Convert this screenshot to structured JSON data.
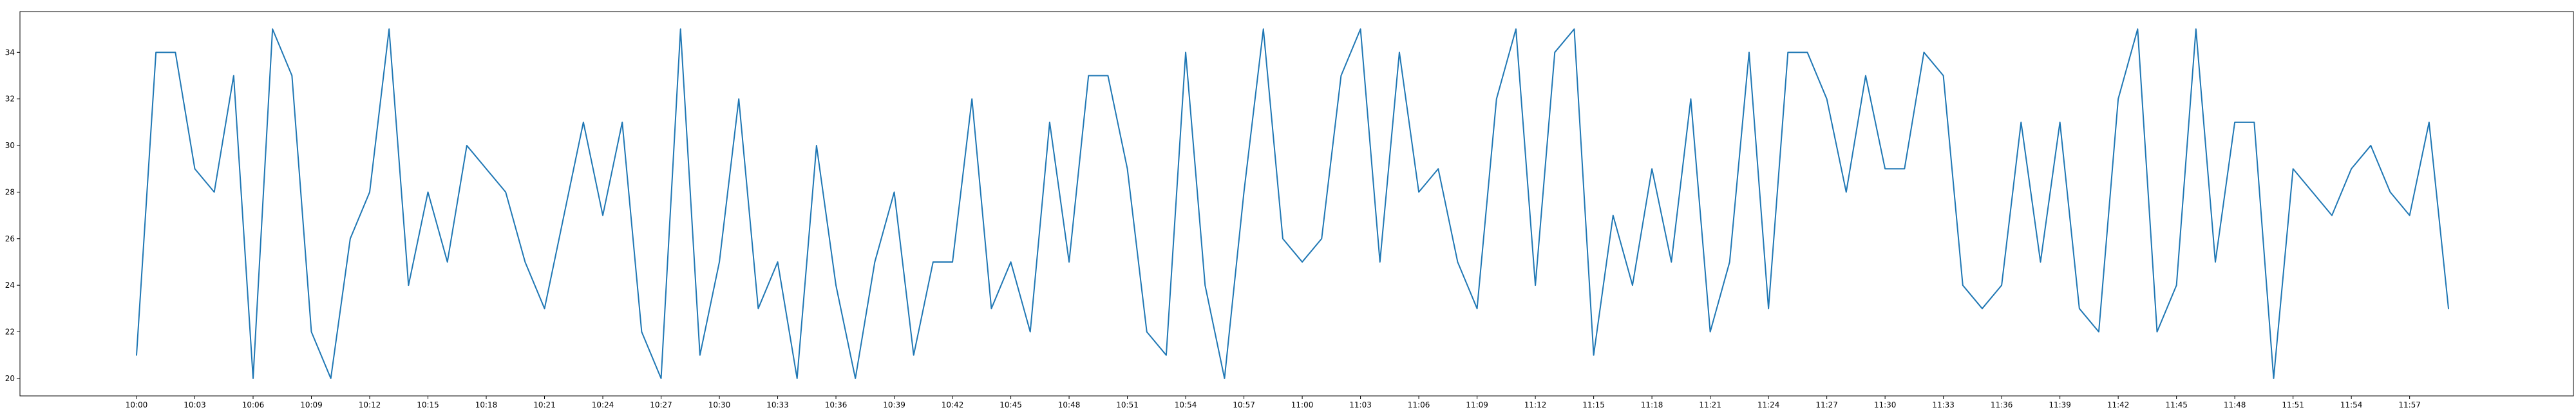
{
  "chart_data": {
    "type": "line",
    "title": "",
    "xlabel": "",
    "ylabel": "",
    "x": [
      "10:00",
      "10:01",
      "10:02",
      "10:03",
      "10:04",
      "10:05",
      "10:06",
      "10:07",
      "10:08",
      "10:09",
      "10:10",
      "10:11",
      "10:12",
      "10:13",
      "10:14",
      "10:15",
      "10:16",
      "10:17",
      "10:18",
      "10:19",
      "10:20",
      "10:21",
      "10:22",
      "10:23",
      "10:24",
      "10:25",
      "10:26",
      "10:27",
      "10:28",
      "10:29",
      "10:30",
      "10:31",
      "10:32",
      "10:33",
      "10:34",
      "10:35",
      "10:36",
      "10:37",
      "10:38",
      "10:39",
      "10:40",
      "10:41",
      "10:42",
      "10:43",
      "10:44",
      "10:45",
      "10:46",
      "10:47",
      "10:48",
      "10:49",
      "10:50",
      "10:51",
      "10:52",
      "10:53",
      "10:54",
      "10:55",
      "10:56",
      "10:57",
      "10:58",
      "10:59",
      "11:00",
      "11:01",
      "11:02",
      "11:03",
      "11:04",
      "11:05",
      "11:06",
      "11:07",
      "11:08",
      "11:09",
      "11:10",
      "11:11",
      "11:12",
      "11:13",
      "11:14",
      "11:15",
      "11:16",
      "11:17",
      "11:18",
      "11:19",
      "11:20",
      "11:21",
      "11:22",
      "11:23",
      "11:24",
      "11:25",
      "11:26",
      "11:27",
      "11:28",
      "11:29",
      "11:30",
      "11:31",
      "11:32",
      "11:33",
      "11:34",
      "11:35",
      "11:36",
      "11:37",
      "11:38",
      "11:39",
      "11:40",
      "11:41",
      "11:42",
      "11:43",
      "11:44",
      "11:45",
      "11:46",
      "11:47",
      "11:48",
      "11:49",
      "11:50",
      "11:51",
      "11:52",
      "11:53",
      "11:54",
      "11:55",
      "11:56",
      "11:57",
      "11:58",
      "11:59"
    ],
    "series": [
      {
        "values": [
          21,
          34,
          34,
          29,
          28,
          33,
          20,
          35,
          33,
          22,
          20,
          26,
          28,
          35,
          24,
          28,
          25,
          30,
          29,
          28,
          25,
          23,
          27,
          31,
          27,
          31,
          22,
          20,
          35,
          21,
          25,
          32,
          23,
          25,
          20,
          30,
          24,
          20,
          25,
          28,
          21,
          25,
          25,
          32,
          23,
          25,
          22,
          31,
          25,
          33,
          33,
          29,
          22,
          21,
          34,
          24,
          20,
          28,
          35,
          26,
          25,
          26,
          33,
          35,
          25,
          34,
          28,
          29,
          25,
          23,
          32,
          35,
          24,
          34,
          35,
          21,
          27,
          24,
          29,
          25,
          32,
          22,
          25,
          34,
          23,
          34,
          34,
          32,
          28,
          33,
          29,
          29,
          34,
          33,
          24,
          23,
          24,
          31,
          25,
          31,
          23,
          22,
          32,
          35,
          22,
          24,
          35,
          25,
          31,
          31,
          20,
          29,
          28,
          27,
          29,
          30,
          28,
          27,
          31,
          23
        ],
        "color": "#1f77b4"
      }
    ],
    "x_ticks": [
      "10:00",
      "10:03",
      "10:06",
      "10:09",
      "10:12",
      "10:15",
      "10:18",
      "10:21",
      "10:24",
      "10:27",
      "10:30",
      "10:33",
      "10:36",
      "10:39",
      "10:42",
      "10:45",
      "10:48",
      "10:51",
      "10:54",
      "10:57",
      "11:00",
      "11:03",
      "11:06",
      "11:09",
      "11:12",
      "11:15",
      "11:18",
      "11:21",
      "11:24",
      "11:27",
      "11:30",
      "11:33",
      "11:36",
      "11:39",
      "11:42",
      "11:45",
      "11:48",
      "11:51",
      "11:54",
      "11:57"
    ],
    "y_ticks": [
      20,
      22,
      24,
      26,
      28,
      30,
      32,
      34
    ],
    "ylim": [
      19.25,
      35.75
    ],
    "grid": false,
    "legend": "none"
  }
}
